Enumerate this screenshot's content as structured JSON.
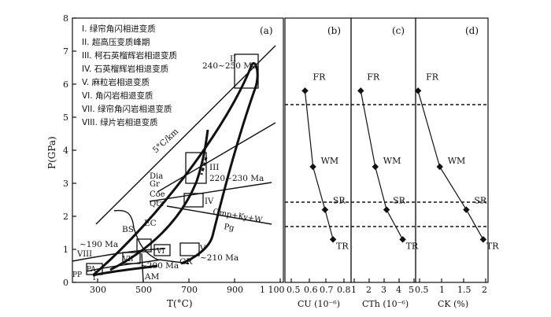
{
  "panel_a": {
    "label": "(a)",
    "y_axis_label": "P(GPa)",
    "x_axis_label": "T(°C)",
    "y_ticks": [
      "0",
      "1",
      "2",
      "3",
      "4",
      "5",
      "6",
      "7",
      "8"
    ],
    "x_ticks": [
      "300",
      "500",
      "700",
      "900",
      "1 100"
    ],
    "legend": [
      "I.  绿帘角闪相进变质",
      "II.  超高压变质峰期",
      "III.  柯石英榴辉岩相退变质",
      "IV.  石英榴辉岩相退变质",
      "V.  麻粒岩相退变质",
      "VI.  角闪岩相退变质",
      "VII.  绿帘角闪岩相退变质",
      "VIII.  绿片岩相退变质"
    ],
    "labels": {
      "ii_box": "II",
      "ii_age": "240~250 Ma",
      "geotherm": "5°C/km",
      "dia": "Dia",
      "gr": "Gr",
      "iii": "III",
      "iii_age": "220~230 Ma",
      "coe": "Coe",
      "qtz": "Qtz",
      "iv": "IV",
      "reaction": "Omp+Ky+W",
      "pg": "Pg",
      "bs": "BS",
      "ec": "EC",
      "age_190": "~190 Ma",
      "viii": "VIII",
      "vii": "VII",
      "vi": "VI",
      "v": "V",
      "age_210": "~210 Ma",
      "age_200": "~200 Ma",
      "gr_facies": "GR",
      "am": "AM",
      "pa": "PA",
      "pp": "PP",
      "i": "I"
    }
  },
  "panel_b": {
    "label": "(b)",
    "x_axis_label": "CU (10⁻⁶)",
    "x_ticks": [
      "0.5",
      "0.6",
      "0.7",
      "0.8"
    ]
  },
  "panel_c": {
    "label": "(c)",
    "x_axis_label": "CTh (10⁻⁶)",
    "x_ticks": [
      "1",
      "2",
      "3",
      "4",
      "5"
    ]
  },
  "panel_d": {
    "label": "(d)",
    "x_axis_label": "CK (%)",
    "x_ticks": [
      "0.5",
      "1",
      "1.5",
      "2"
    ]
  },
  "stage_labels": [
    "FR",
    "WM",
    "SR",
    "TR"
  ],
  "chart_data": [
    {
      "type": "line",
      "panel": "(b)",
      "xlabel": "CU (10⁻⁶)",
      "x": [
        0.6,
        0.64,
        0.7,
        0.74
      ],
      "y": [
        5.8,
        3.5,
        2.2,
        1.3
      ],
      "xlim": [
        0.5,
        0.83
      ],
      "point_labels": [
        "FR",
        "WM",
        "SR",
        "TR"
      ]
    },
    {
      "type": "line",
      "panel": "(c)",
      "xlabel": "CTh (10⁻⁶)",
      "x": [
        1.6,
        2.5,
        3.2,
        4.2
      ],
      "y": [
        5.8,
        3.5,
        2.2,
        1.3
      ],
      "xlim": [
        1,
        5
      ],
      "point_labels": [
        "FR",
        "WM",
        "SR",
        "TR"
      ]
    },
    {
      "type": "line",
      "panel": "(d)",
      "xlabel": "CK (%)",
      "x": [
        0.55,
        1.0,
        1.55,
        1.9
      ],
      "y": [
        5.8,
        3.5,
        2.2,
        1.3
      ],
      "xlim": [
        0.5,
        2
      ],
      "point_labels": [
        "FR",
        "WM",
        "SR",
        "TR"
      ]
    }
  ]
}
